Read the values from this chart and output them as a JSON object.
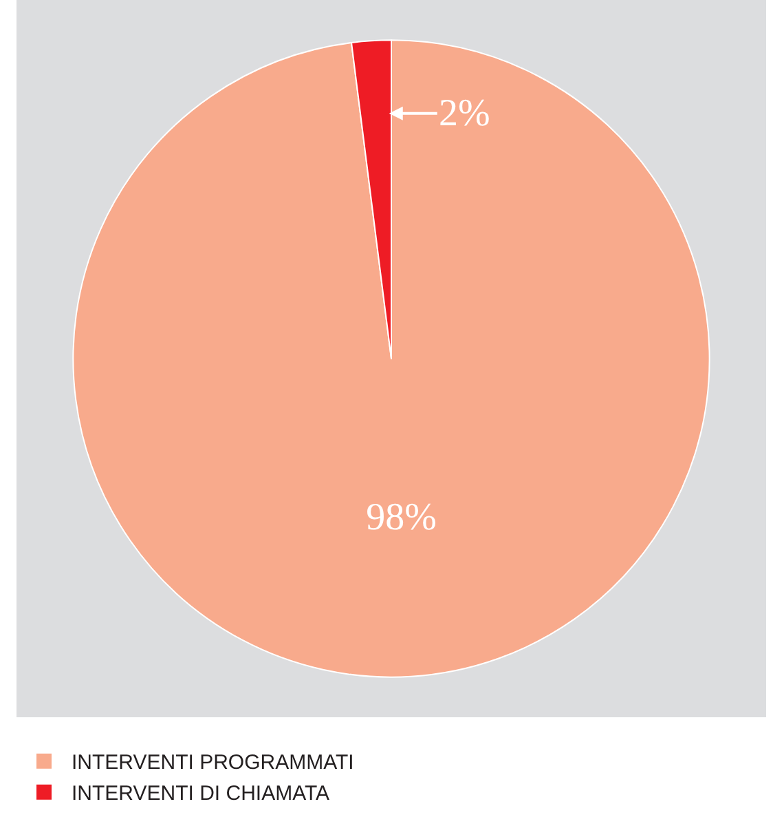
{
  "chart_data": {
    "type": "pie",
    "categories": [
      "INTERVENTI PROGRAMMATI",
      "INTERVENTI DI CHIAMATA"
    ],
    "values": [
      98,
      2
    ],
    "colors": [
      "#f8aa8c",
      "#ee1c25"
    ],
    "value_labels": [
      "98%",
      "2%"
    ],
    "legend": "bottom"
  }
}
